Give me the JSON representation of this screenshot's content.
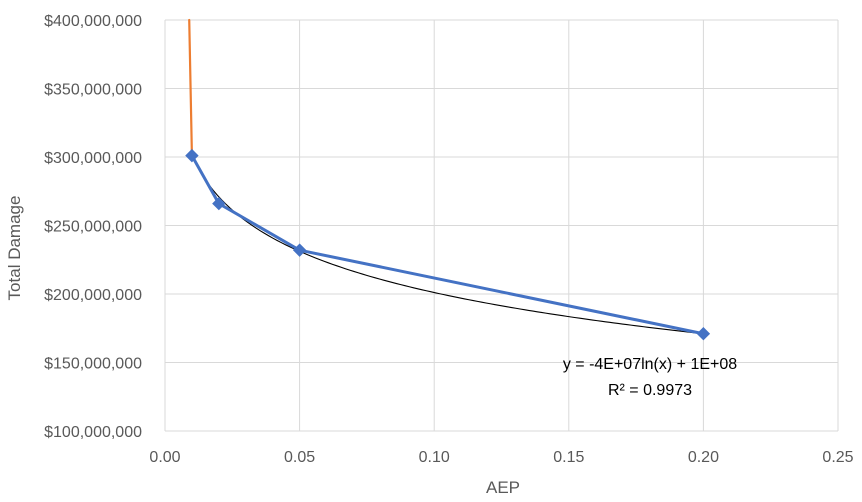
{
  "chart_data": {
    "type": "scatter",
    "title": "",
    "xlabel": "AEP",
    "ylabel": "Total Damage",
    "xlim": [
      0,
      0.25
    ],
    "ylim": [
      100000000,
      400000000
    ],
    "x_ticks": [
      0,
      0.05,
      0.1,
      0.15,
      0.2,
      0.25
    ],
    "x_tick_labels": [
      "0.00",
      "0.05",
      "0.10",
      "0.15",
      "0.20",
      "0.25"
    ],
    "y_ticks": [
      100000000,
      150000000,
      200000000,
      250000000,
      300000000,
      350000000,
      400000000
    ],
    "y_tick_labels": [
      "$100,000,000",
      "$150,000,000",
      "$200,000,000",
      "$250,000,000",
      "$300,000,000",
      "$350,000,000",
      "$400,000,000"
    ],
    "grid": true,
    "legend": "none",
    "series": [
      {
        "type": "line+markers",
        "color": "#4472C4",
        "marker": "diamond",
        "points": [
          {
            "x": 0.01,
            "y": 301000000
          },
          {
            "x": 0.02,
            "y": 266000000
          },
          {
            "x": 0.05,
            "y": 232000000
          },
          {
            "x": 0.2,
            "y": 171000000
          }
        ]
      },
      {
        "type": "line",
        "color": "#ED7D31",
        "points": [
          {
            "x": 0.009,
            "y": 400000000
          },
          {
            "x": 0.01,
            "y": 301000000
          }
        ]
      }
    ],
    "trendline": {
      "type": "logarithmic",
      "color": "#000000",
      "x_range": [
        0.01,
        0.2
      ],
      "anchor_points": [
        {
          "x": 0.01,
          "y": 301000000
        },
        {
          "x": 0.2,
          "y": 171000000
        }
      ],
      "equation": "y = -4E+07ln(x) + 1E+08",
      "r_squared": "R² = 0.9973"
    },
    "colors": {
      "grid": "#D9D9D9",
      "axis_text": "#595959",
      "annotation_text": "#000000"
    }
  }
}
